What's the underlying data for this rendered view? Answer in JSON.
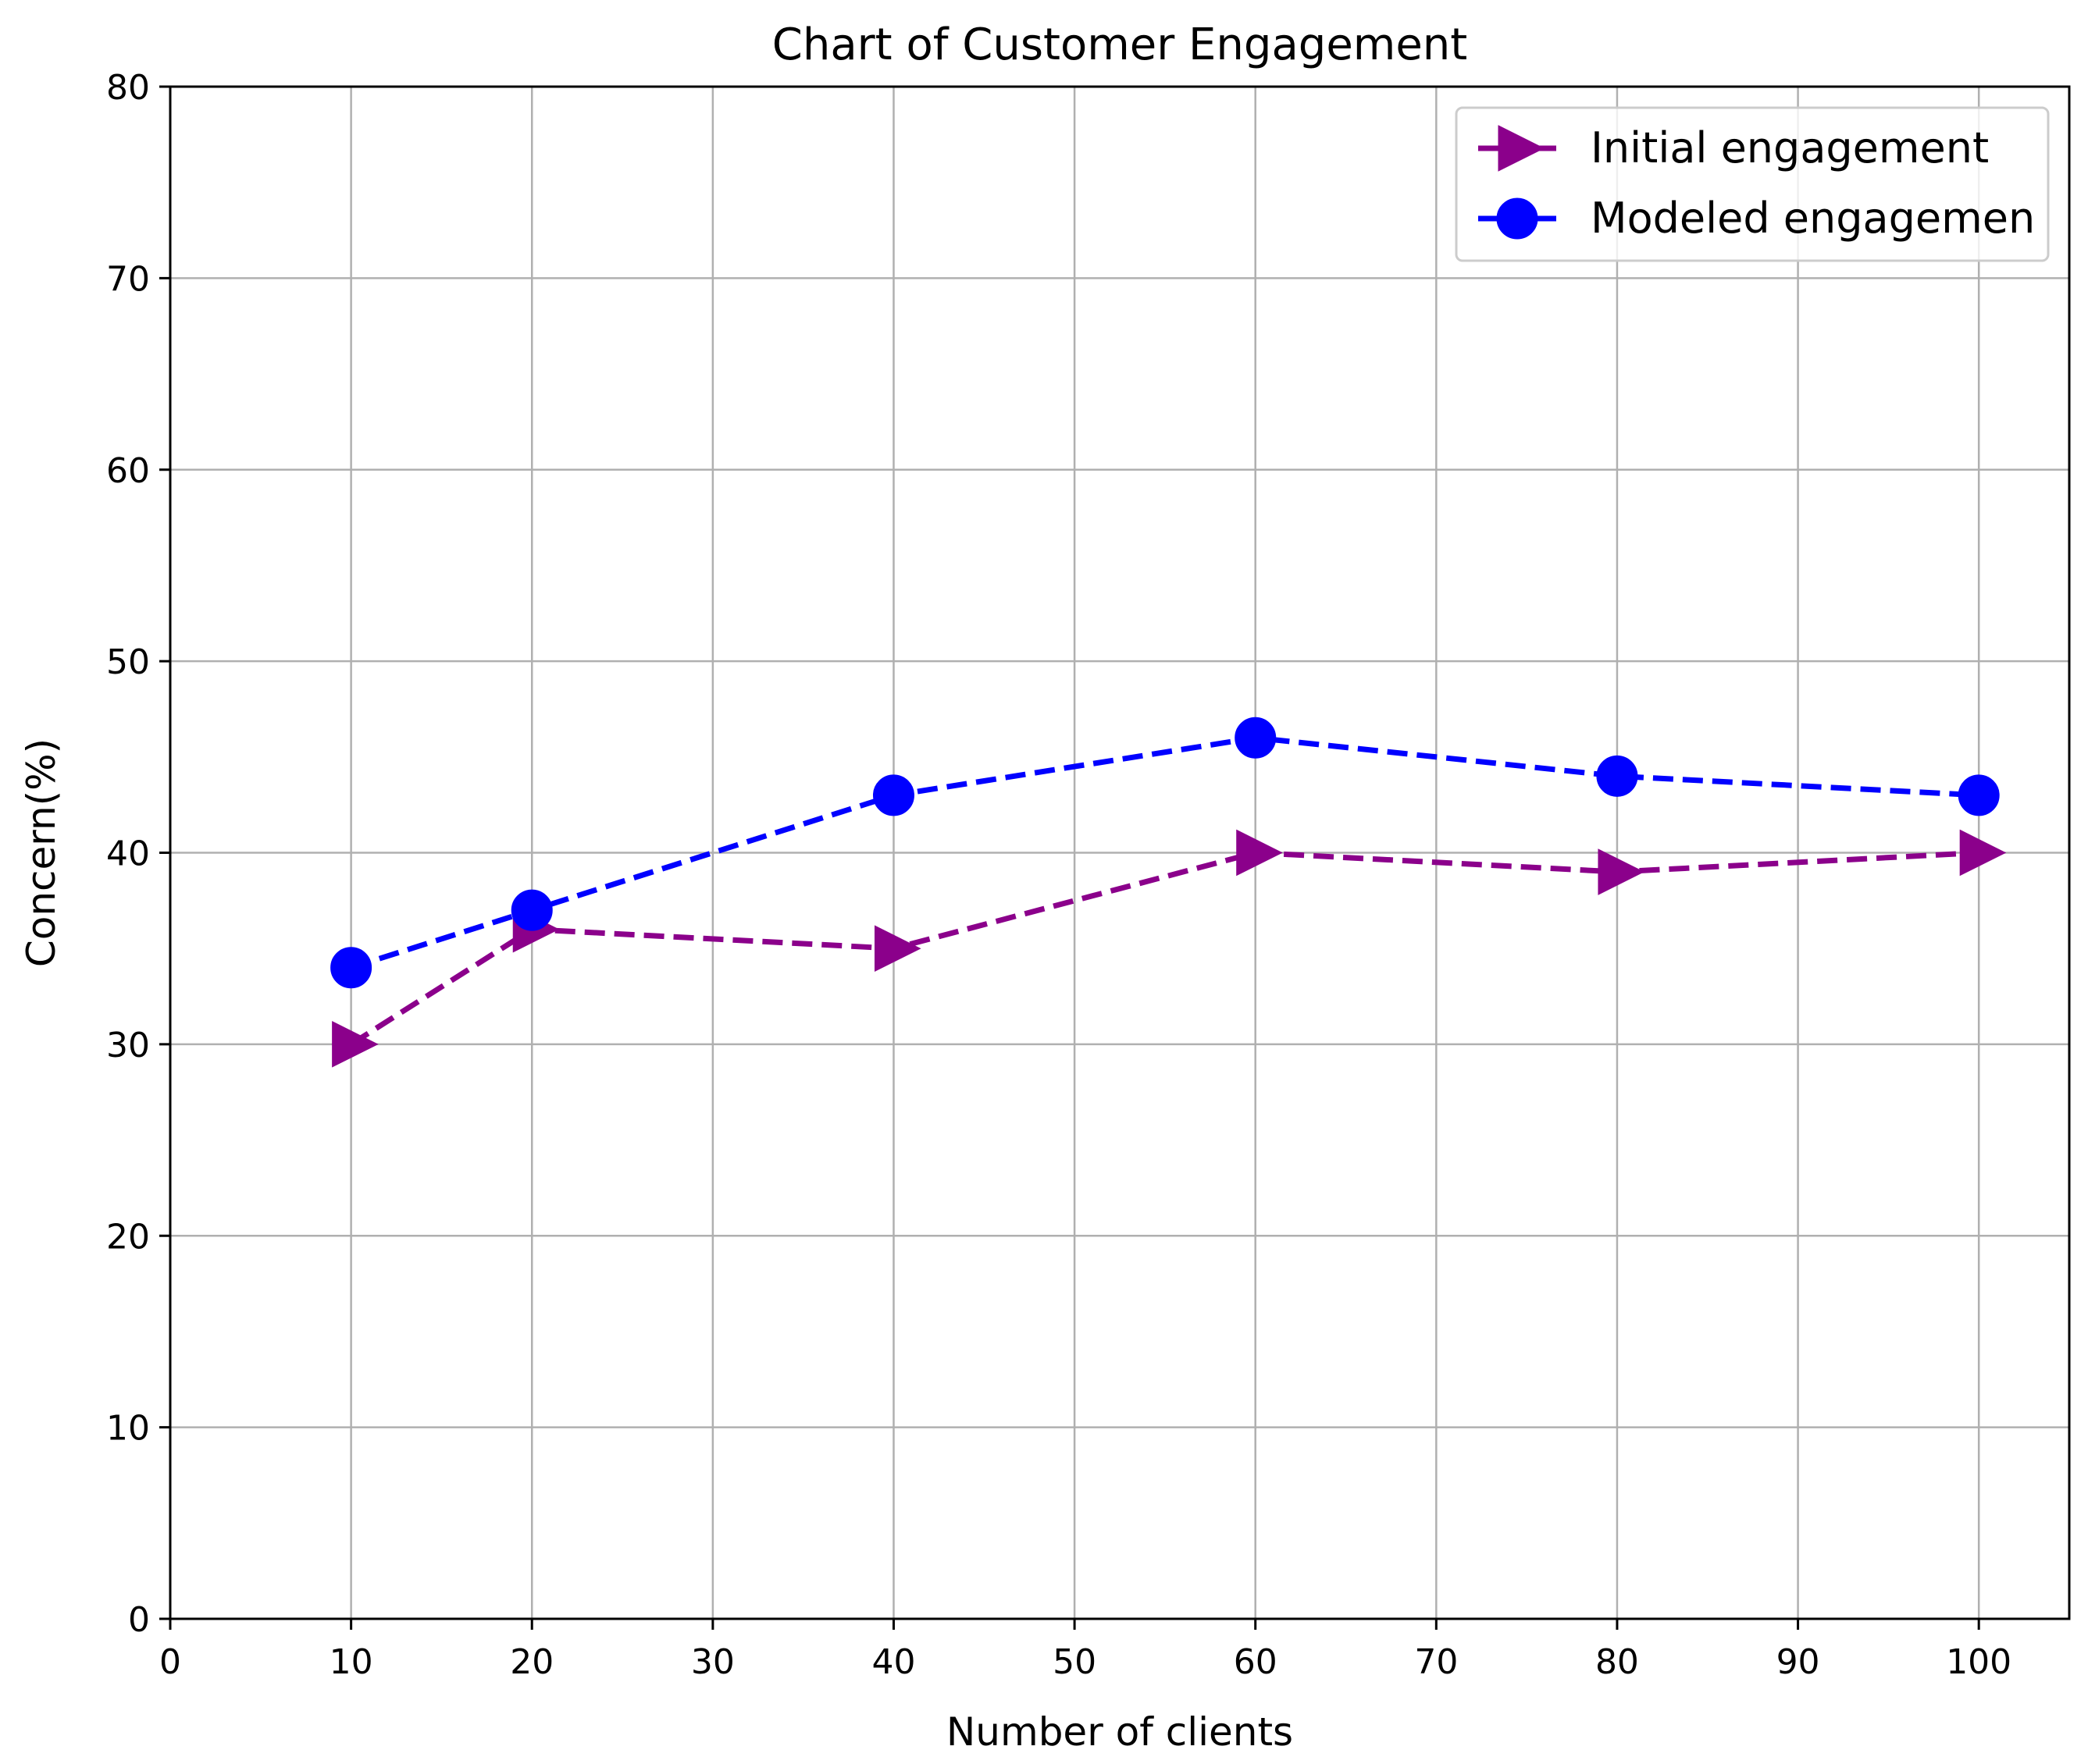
{
  "chart_data": {
    "type": "line",
    "title": "Chart of Customer Engagement",
    "xlabel": "Number of clients",
    "ylabel": "Concern(%)",
    "xlim": [
      0,
      105
    ],
    "ylim": [
      0,
      80
    ],
    "xticks": [
      0,
      10,
      20,
      30,
      40,
      50,
      60,
      70,
      80,
      90,
      100
    ],
    "yticks": [
      0,
      10,
      20,
      30,
      40,
      50,
      60,
      70,
      80
    ],
    "grid": true,
    "legend_position": "top-right",
    "x": [
      10,
      20,
      40,
      60,
      80,
      100
    ],
    "series": [
      {
        "name": "Initial engagement",
        "values": [
          30,
          36,
          35,
          40,
          39,
          40
        ],
        "color": "#8b008b",
        "marker": "triangle-right",
        "line_style": "dashed"
      },
      {
        "name": "Modeled engagemen",
        "values": [
          34,
          37,
          43,
          46,
          44,
          43
        ],
        "color": "#0000ff",
        "marker": "circle",
        "line_style": "dashed"
      }
    ]
  }
}
